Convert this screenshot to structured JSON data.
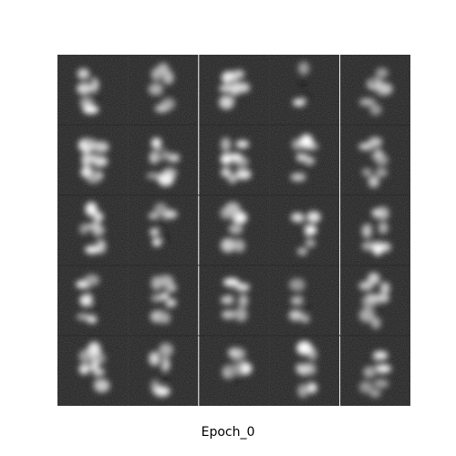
{
  "caption": "Epoch_0"
}
